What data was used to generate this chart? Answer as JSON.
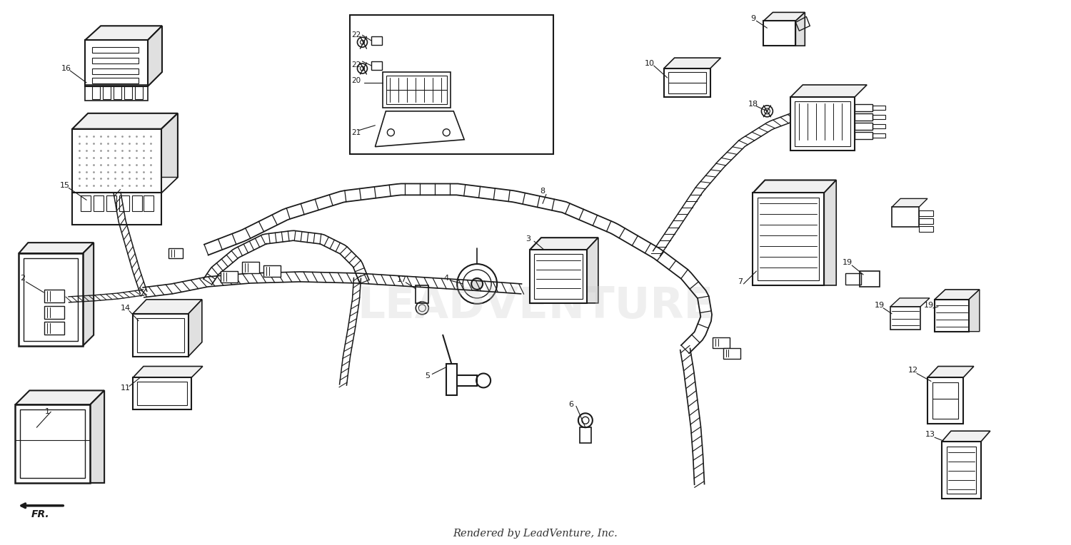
{
  "footer_text": "Rendered by LeadVenture, Inc.",
  "background_color": "#ffffff",
  "fig_width": 15.0,
  "fig_height": 7.64,
  "watermark_text": "LEADVENTURE",
  "watermark_color": "#cccccc",
  "watermark_alpha": 0.3,
  "watermark_fontsize": 44,
  "footer_fontsize": 10.5,
  "line_color": "#1a1a1a",
  "label_fontsize": 8.0,
  "dpi": 100
}
